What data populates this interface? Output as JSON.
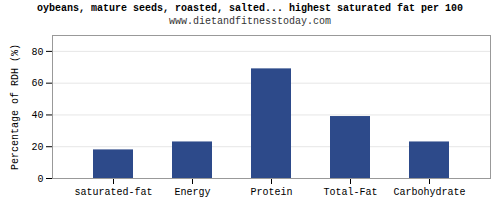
{
  "chart_data": {
    "type": "bar",
    "title": "oybeans, mature seeds, roasted, salted... highest saturated fat per 100",
    "subtitle": "www.dietandfitnesstoday.com",
    "categories": [
      "saturated-fat",
      "Energy",
      "Protein",
      "Total-Fat",
      "Carbohydrate"
    ],
    "values": [
      18,
      23,
      69,
      39,
      23
    ],
    "color": "#2d4a8a",
    "ylabel": "Percentage of RDH (%)",
    "ylim": [
      0,
      90
    ],
    "yticks": [
      0,
      20,
      40,
      60,
      80
    ],
    "grid": true
  }
}
